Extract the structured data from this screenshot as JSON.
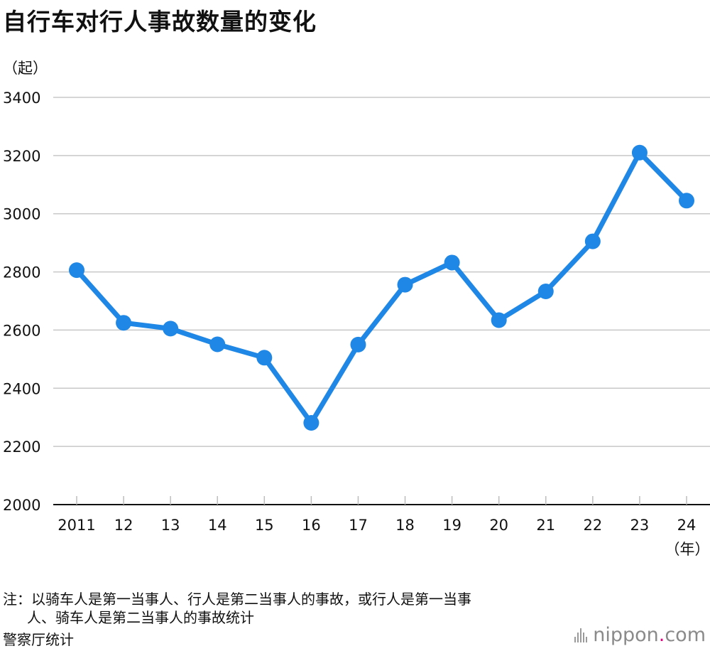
{
  "chart_data": {
    "type": "line",
    "title": "自行车对行人事故数量的变化",
    "y_unit": "（起）",
    "x_unit": "（年）",
    "categories": [
      "2011",
      "12",
      "13",
      "14",
      "15",
      "16",
      "17",
      "18",
      "19",
      "20",
      "21",
      "22",
      "23",
      "24"
    ],
    "values": [
      2806,
      2625,
      2605,
      2551,
      2505,
      2281,
      2550,
      2756,
      2832,
      2634,
      2733,
      2905,
      3210,
      3045
    ],
    "y_ticks": [
      2000,
      2200,
      2400,
      2600,
      2800,
      3000,
      3200,
      3400
    ],
    "ylim": [
      2000,
      3400
    ],
    "grid": true,
    "line_color": "#1f87e5"
  },
  "notes": {
    "line1": "注：以骑车人是第一当事人、行人是第二当事人的事故，或行人是第一当事",
    "line2": "人、骑车人是第二当事人的事故统计",
    "source": "警察厅统计"
  },
  "logo": {
    "text": "nippon",
    "dot": ".",
    "suffix": "com"
  }
}
